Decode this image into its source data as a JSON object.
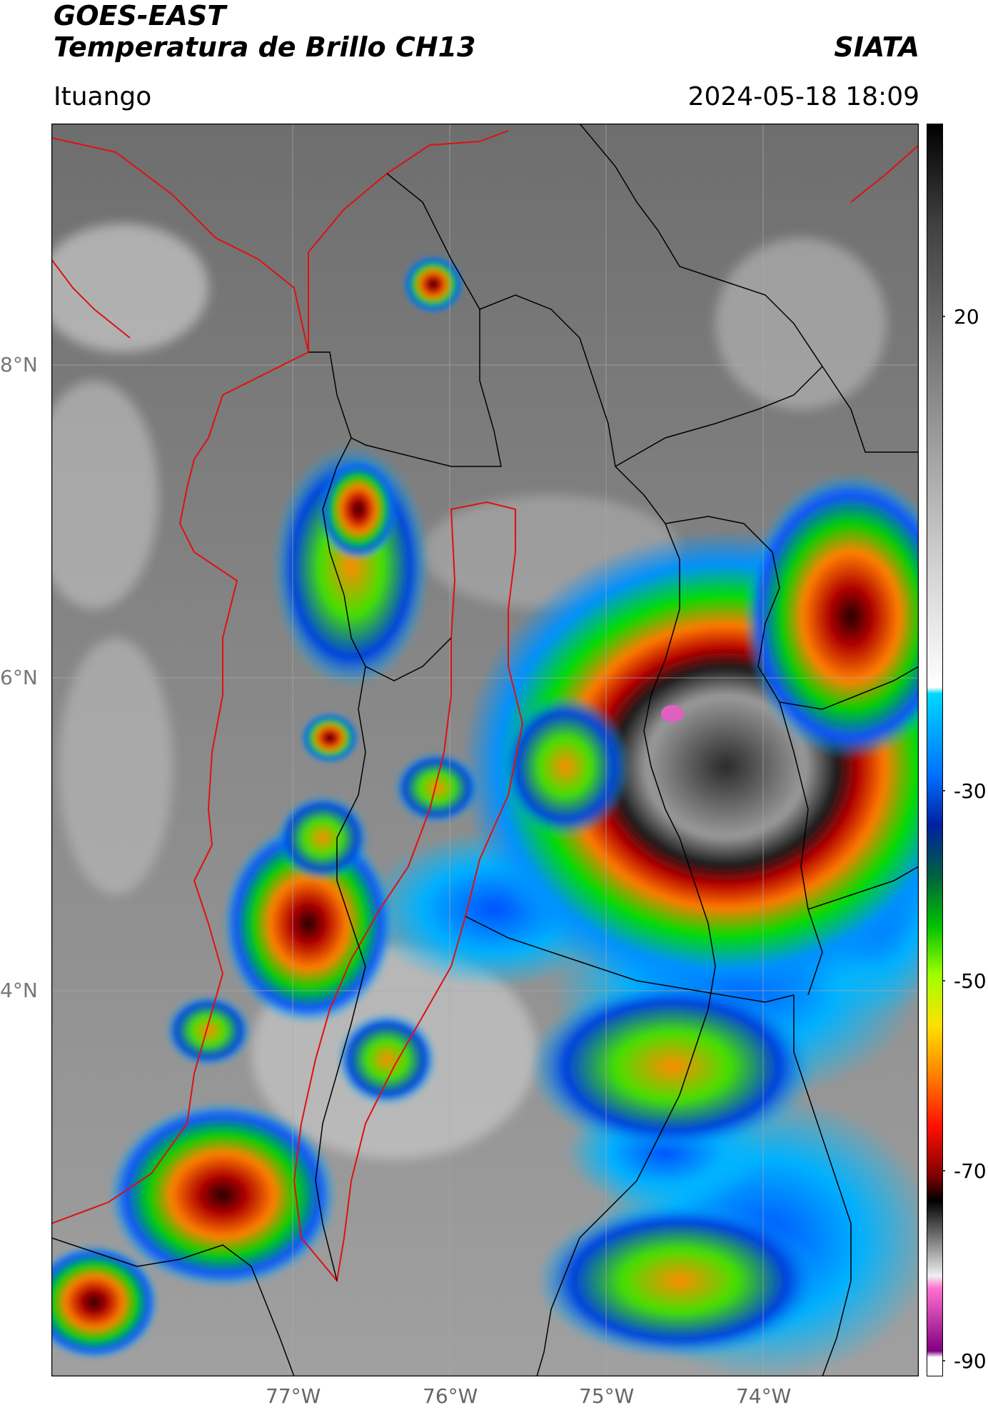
{
  "header": {
    "title_line1": "GOES-EAST",
    "title_line2": "Temperatura de Brillo CH13",
    "organization": "SIATA",
    "region": "Ituango",
    "timestamp": "2024-05-18 18:09"
  },
  "map": {
    "lat_labels": [
      "8°N",
      "6°N",
      "4°N"
    ],
    "lon_labels": [
      "77°W",
      "76°W",
      "75°W",
      "74°W"
    ],
    "background_color": "#7a7a7a",
    "border_color_red": "#e01010",
    "border_color_black": "#000000"
  },
  "colorbar": {
    "ticks": [
      "20",
      "-30",
      "-50",
      "-70",
      "-90"
    ],
    "min": -90,
    "max": 35
  }
}
